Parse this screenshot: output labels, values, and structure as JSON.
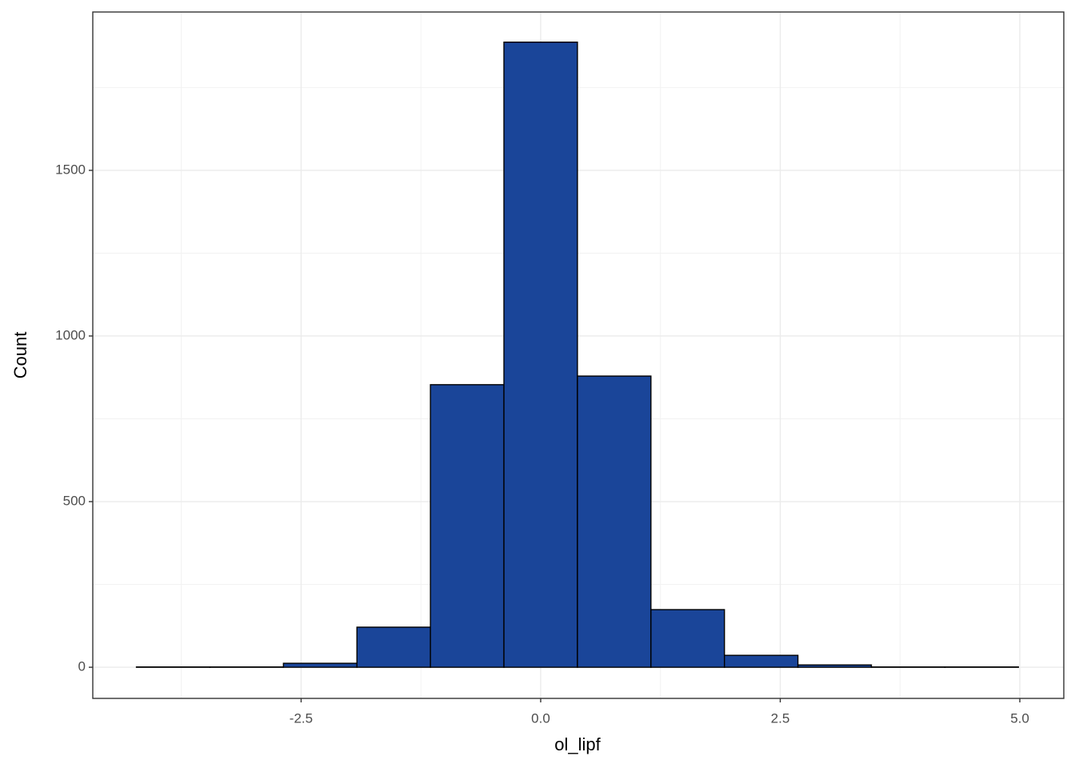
{
  "chart_data": {
    "type": "histogram",
    "xlabel": "ol_lipf",
    "ylabel": "Count",
    "bins": [
      -4.2185,
      -3.4515,
      -2.6845,
      -1.9175,
      -1.1505,
      -0.3835,
      0.3835,
      1.1505,
      1.9175,
      2.6845,
      3.4515,
      4.2185,
      4.9855
    ],
    "values": [
      1,
      1,
      12,
      121,
      853,
      1887,
      879,
      174,
      36,
      7,
      1,
      1
    ],
    "color": "#1a4599",
    "edgecolor": "#000000",
    "xlim": [
      -4.674,
      5.459
    ],
    "ylim": [
      -94,
      1978
    ],
    "xticks": [
      {
        "value": -2.5,
        "label": "-2.5"
      },
      {
        "value": 0,
        "label": "0.0"
      },
      2.5,
      {
        "value": 5,
        "label": "5.0"
      }
    ],
    "xminor": [
      -3.75,
      -1.25,
      1.25,
      3.75
    ],
    "yticks": [
      0,
      500,
      1000,
      1500
    ],
    "yminor": [
      250,
      750,
      1250,
      1750
    ],
    "grid": true
  }
}
